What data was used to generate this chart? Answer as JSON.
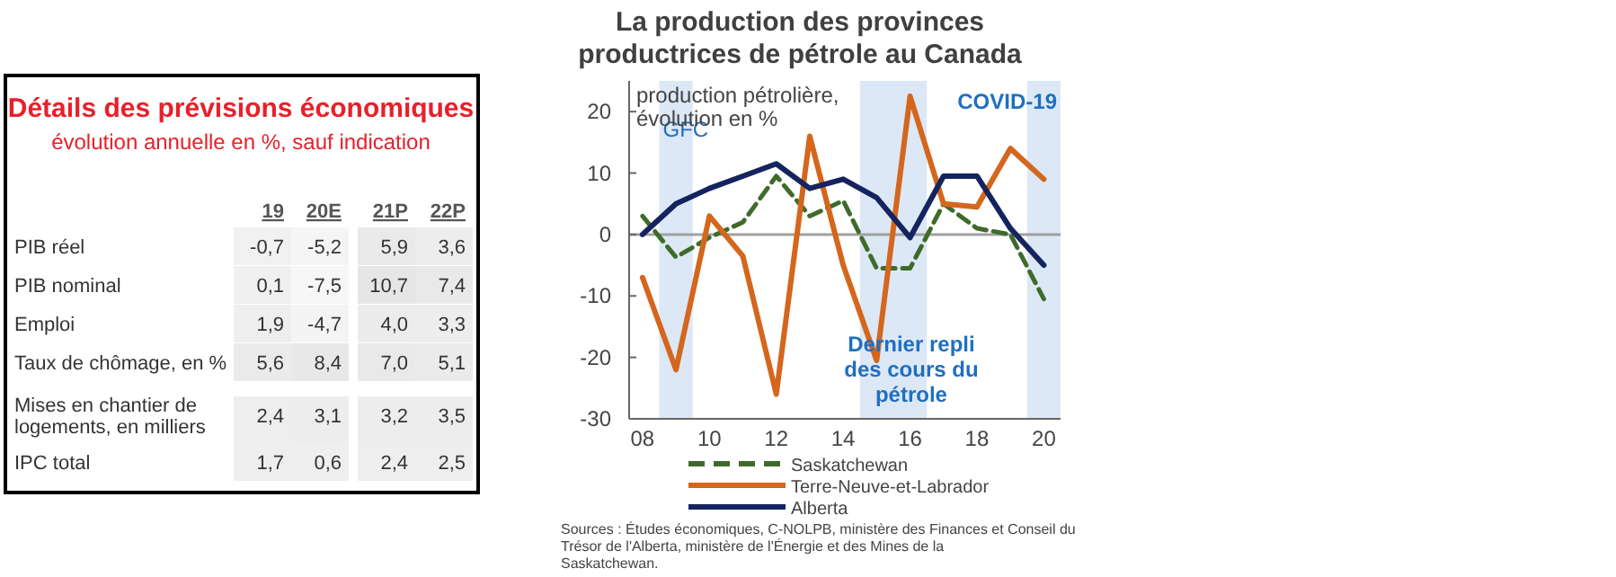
{
  "chart_data": [
    {
      "type": "heatmap",
      "title": "Détails des prévisions économiques",
      "subtitle": "évolution annuelle en %, sauf indication",
      "categories": [
        "19",
        "20E",
        "21P",
        "22P"
      ],
      "y_categories": [
        "PIB réel",
        "PIB nominal",
        "Emploi",
        "Taux de chômage, en  %",
        "Mises en chantier de logements, en milliers",
        "IPC total"
      ],
      "cells": [
        [
          -0.7,
          -5.2,
          5.9,
          3.6
        ],
        [
          0.1,
          -7.5,
          10.7,
          7.4
        ],
        [
          1.9,
          -4.7,
          4.0,
          3.3
        ],
        [
          5.6,
          8.4,
          7.0,
          5.1
        ],
        [
          2.4,
          3.1,
          3.2,
          3.5
        ],
        [
          1.7,
          0.6,
          2.4,
          2.5
        ]
      ],
      "cell_labels": [
        [
          "-0,7",
          "-5,2",
          "5,9",
          "3,6"
        ],
        [
          "0,1",
          "-7,5",
          "10,7",
          "7,4"
        ],
        [
          "1,9",
          "-4,7",
          "4,0",
          "3,3"
        ],
        [
          "5,6",
          "8,4",
          "7,0",
          "5,1"
        ],
        [
          "2,4",
          "3,1",
          "3,2",
          "3,5"
        ],
        [
          "1,7",
          "0,6",
          "2,4",
          "2,5"
        ]
      ]
    },
    {
      "type": "line",
      "title": "La production des provinces productrices de pétrole au Canada",
      "ylabel": "production pétrolière, évolution en %",
      "x": [
        2008,
        2009,
        2010,
        2011,
        2012,
        2013,
        2014,
        2015,
        2016,
        2017,
        2018,
        2019,
        2020
      ],
      "xlim": [
        2007.6,
        2020.5
      ],
      "xticks": [
        {
          "value": 2008,
          "label": "08"
        },
        {
          "value": 2010,
          "label": "10"
        },
        {
          "value": 2012,
          "label": "12"
        },
        {
          "value": 2014,
          "label": "14"
        },
        {
          "value": 2016,
          "label": "16"
        },
        {
          "value": 2018,
          "label": "18"
        },
        {
          "value": 2020,
          "label": "20"
        }
      ],
      "ylim": [
        -30,
        25
      ],
      "yticks": [
        -30,
        -20,
        -10,
        0,
        10,
        20
      ],
      "grid": false,
      "legend": "bottom",
      "series": [
        {
          "name": "Saskatchewan",
          "color": "#3f6b2a",
          "line_style": "dashed",
          "values": [
            3,
            -3.7,
            -0.5,
            2,
            9.5,
            3,
            5.5,
            -5.5,
            -5.5,
            5,
            1,
            0,
            -10.5
          ]
        },
        {
          "name": "Terre-Neuve-et-Labrador",
          "color": "#d4661d",
          "line_style": "solid",
          "values": [
            -7,
            -22,
            3,
            -3.5,
            -26,
            16,
            -5,
            -20.5,
            22.5,
            5,
            4.5,
            14,
            9
          ]
        },
        {
          "name": "Alberta",
          "color": "#14245e",
          "line_style": "solid",
          "values": [
            0,
            5,
            7.5,
            9.5,
            11.5,
            7.5,
            9,
            6,
            -0.5,
            9.5,
            9.5,
            1,
            -5
          ]
        }
      ],
      "bands": [
        {
          "axis": "x",
          "from": 2008.5,
          "to": 2009.5,
          "label": "GFC",
          "color": "#dce8f5"
        },
        {
          "axis": "x",
          "from": 2014.5,
          "to": 2016.5,
          "label": "Dernier repli des cours du pétrole",
          "color": "#dce8f5"
        },
        {
          "axis": "x",
          "from": 2019.5,
          "to": 2020.5,
          "label": "COVID-19",
          "color": "#dce8f5"
        }
      ],
      "ref_lines": [
        {
          "axis": "y",
          "value": 0,
          "color": "#a0a0a0"
        }
      ],
      "annotations": [
        "Sources : Études économiques, C-NOLPB, ministère des Finances et Conseil du Trésor de l'Alberta, ministère de l'Énergie et des Mines de la Saskatchewan."
      ]
    }
  ]
}
